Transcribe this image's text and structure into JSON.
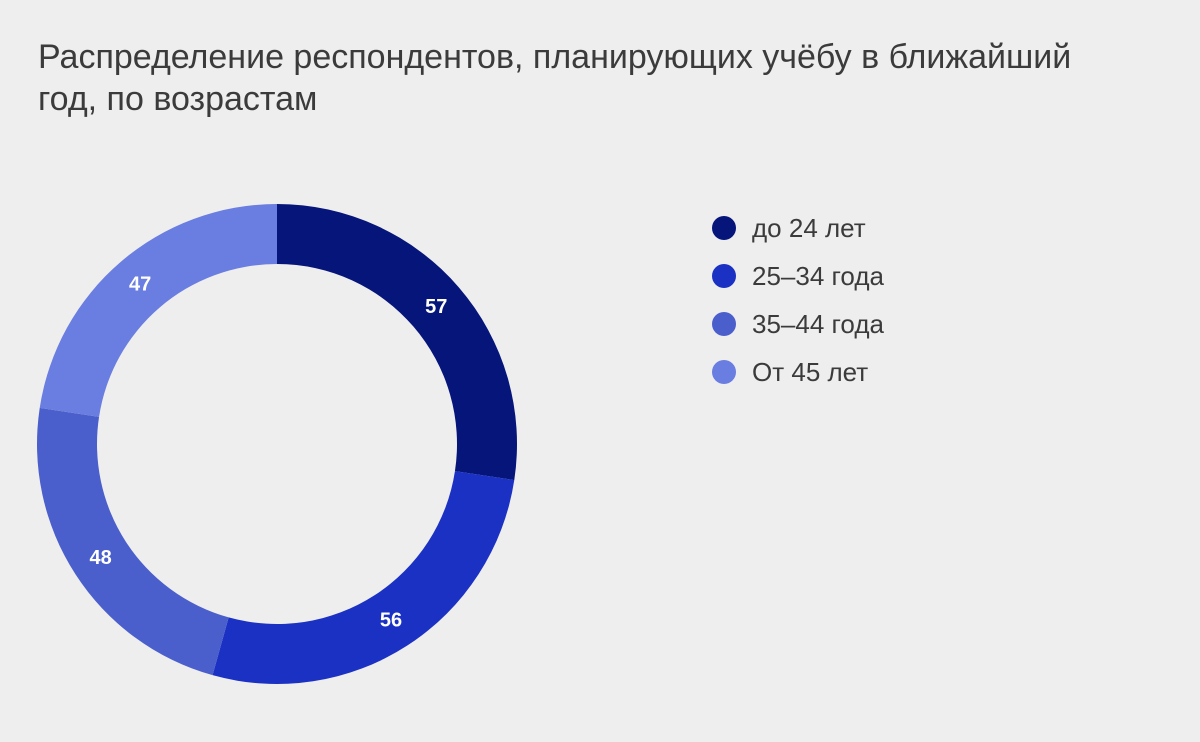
{
  "chart_data": {
    "type": "pie",
    "title": "Распределение респондентов, планирующих учёбу в ближайший год, по возрастам",
    "categories": [
      "до 24 лет",
      "25–34 года",
      "35–44 года",
      "От 45 лет"
    ],
    "values": [
      57,
      56,
      48,
      47
    ],
    "colors": [
      "#05157a",
      "#1a31c3",
      "#4a5fcb",
      "#6a7de0"
    ],
    "donut": true,
    "legend_position": "right"
  }
}
